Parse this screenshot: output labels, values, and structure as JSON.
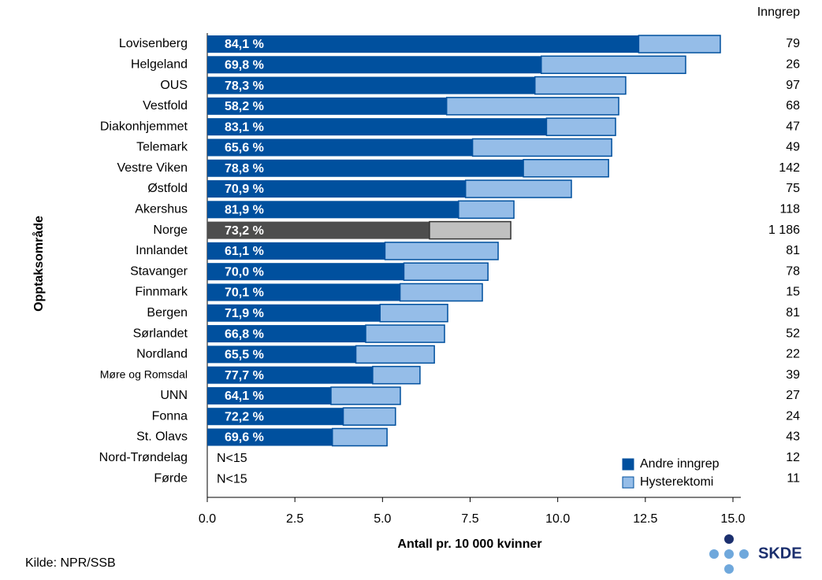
{
  "chart_data": {
    "type": "stacked-barh",
    "x_label": "Antall pr. 10 000 kvinner",
    "y_label": "Opptaksområde",
    "categories": [
      "Lovisenberg",
      "Helgeland",
      "OUS",
      "Vestfold",
      "Diakonhjemmet",
      "Telemark",
      "Vestre Viken",
      "Østfold",
      "Akershus",
      "Norge",
      "Innlandet",
      "Stavanger",
      "Finnmark",
      "Bergen",
      "Sørlandet",
      "Nordland",
      "Møre og Romsdal",
      "UNN",
      "Fonna",
      "St. Olavs",
      "Nord-Trøndelag",
      "Førde"
    ],
    "series": [
      {
        "name": "Andre inngrep",
        "color": "#00509e",
        "values": [
          12.31,
          9.53,
          9.35,
          6.83,
          9.68,
          7.57,
          9.02,
          7.37,
          7.17,
          6.34,
          5.07,
          5.61,
          5.5,
          4.93,
          4.52,
          4.24,
          4.72,
          3.53,
          3.88,
          3.57,
          null,
          null
        ]
      },
      {
        "name": "Hysterektomi",
        "color": "#95bde8",
        "values": [
          2.33,
          4.12,
          2.59,
          4.91,
          1.97,
          3.97,
          2.43,
          3.02,
          1.58,
          2.32,
          3.23,
          2.4,
          2.35,
          1.93,
          2.25,
          2.24,
          1.35,
          1.98,
          1.49,
          1.56,
          null,
          null
        ]
      }
    ],
    "share_labels": [
      "84,1 %",
      "69,8 %",
      "78,3 %",
      "58,2 %",
      "83,1 %",
      "65,6 %",
      "78,8 %",
      "70,9 %",
      "81,9 %",
      "73,2 %",
      "61,1 %",
      "70,0 %",
      "70,1 %",
      "71,9 %",
      "66,8 %",
      "65,5 %",
      "77,7 %",
      "64,1 %",
      "72,2 %",
      "69,6 %",
      "N<15",
      "N<15"
    ],
    "highlight_category": "Norge",
    "highlight_colors": [
      "#4d4d4d",
      "#c0c0c0"
    ],
    "count_header": "Inngrep",
    "counts": [
      79,
      26,
      97,
      68,
      47,
      49,
      142,
      75,
      118,
      {
        "value": 1186,
        "label": "1 186"
      },
      81,
      78,
      15,
      81,
      52,
      22,
      39,
      27,
      24,
      43,
      12,
      11
    ],
    "xlim": [
      0,
      15
    ],
    "xticks": [
      {
        "value": 0,
        "label": "0.0"
      },
      2.5,
      {
        "value": 5,
        "label": "5.0"
      },
      7.5,
      {
        "value": 10,
        "label": "10.0"
      },
      12.5,
      {
        "value": 15,
        "label": "15.0"
      }
    ],
    "legend": "lower right",
    "source": "Kilde: NPR/SSB",
    "logo": "SKDE"
  }
}
